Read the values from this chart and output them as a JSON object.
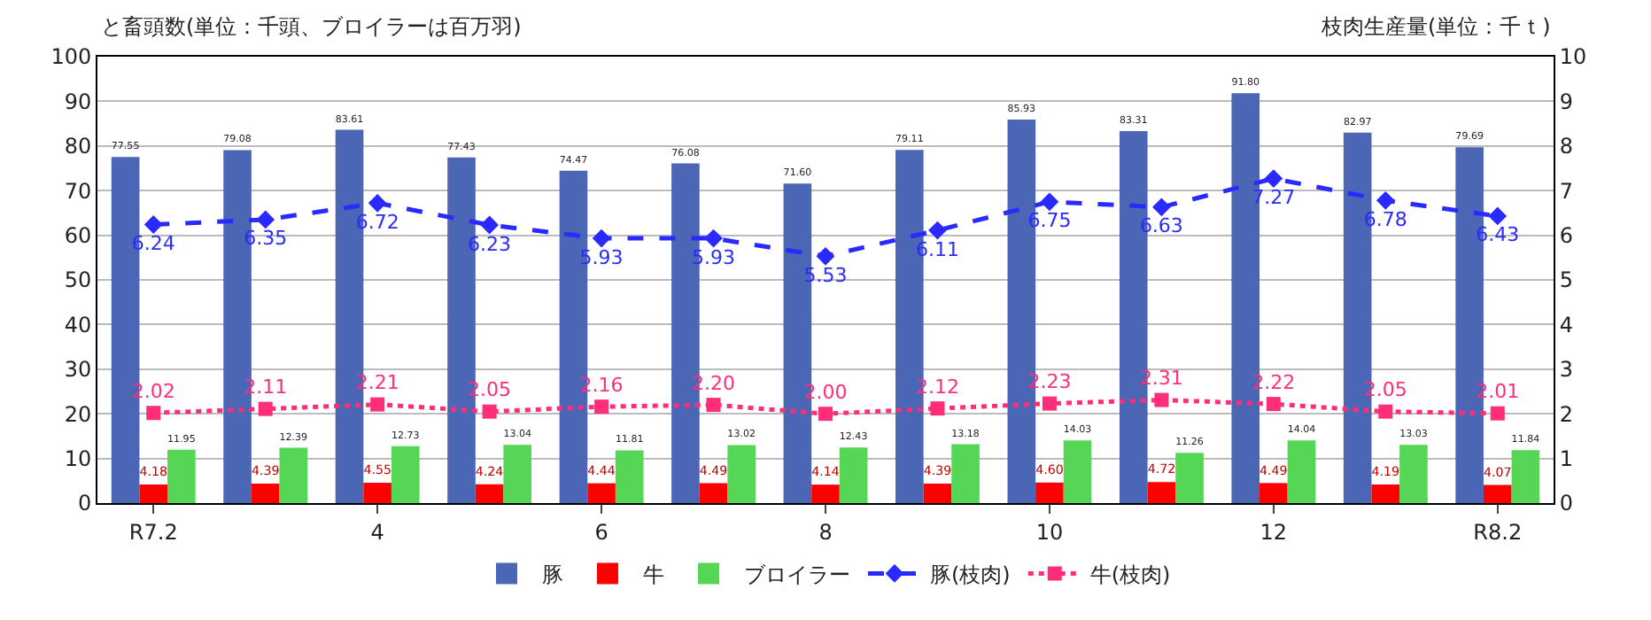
{
  "chart_data": {
    "type": "bar",
    "ylabel": "と畜頭数(単位：千頭、ブロイラーは百万羽)",
    "y2label": "枝肉生産量(単位：千ｔ)",
    "categories": [
      "R7.2",
      null,
      "4",
      null,
      "6",
      null,
      "8",
      null,
      "10",
      null,
      "12",
      null,
      "R8.2"
    ],
    "series": [
      {
        "name": "豚",
        "color": "#4a66b4",
        "values": [
          77.55,
          79.08,
          83.61,
          77.43,
          74.47,
          76.08,
          71.6,
          79.11,
          85.93,
          83.31,
          91.8,
          82.97,
          79.69
        ],
        "value_labels": [
          "77.55",
          "79.08",
          "83.61",
          "77.43",
          "74.47",
          "76.08",
          "71.60",
          "79.11",
          "85.93",
          "83.31",
          "91.80",
          "82.97",
          "79.69"
        ]
      },
      {
        "name": "牛",
        "color": "#ff0000",
        "values": [
          4.18,
          4.39,
          4.55,
          4.24,
          4.44,
          4.49,
          4.14,
          4.39,
          4.6,
          4.72,
          4.49,
          4.19,
          4.07
        ],
        "value_labels": [
          "4.18",
          "4.39",
          "4.55",
          "4.24",
          "4.44",
          "4.49",
          "4.14",
          "4.39",
          "4.60",
          "4.72",
          "4.49",
          "4.19",
          "4.07"
        ]
      },
      {
        "name": "ブロイラー",
        "color": "#55d655",
        "values": [
          11.95,
          12.39,
          12.73,
          13.04,
          11.81,
          13.02,
          12.43,
          13.18,
          14.03,
          11.26,
          14.04,
          13.03,
          11.84
        ],
        "value_labels": [
          "11.95",
          "12.39",
          "12.73",
          "13.04",
          "11.81",
          "13.02",
          "12.43",
          "13.18",
          "14.03",
          "11.26",
          "14.04",
          "13.03",
          "11.84"
        ]
      },
      {
        "name": "豚(枝肉)",
        "type": "line",
        "axis": "y2",
        "color": "#2a2aff",
        "marker": "diamond",
        "line_style": "dashed",
        "values": [
          6.24,
          6.35,
          6.72,
          6.23,
          5.93,
          5.93,
          5.53,
          6.11,
          6.75,
          6.63,
          7.27,
          6.78,
          6.43
        ],
        "value_labels": [
          "6.24",
          "6.35",
          "6.72",
          "6.23",
          "5.93",
          "5.93",
          "5.53",
          "6.11",
          "6.75",
          "6.63",
          "7.27",
          "6.78",
          "6.43"
        ]
      },
      {
        "name": "牛(枝肉)",
        "type": "line",
        "axis": "y2",
        "color": "#ff2d7a",
        "marker": "square",
        "line_style": "dotted",
        "values": [
          2.02,
          2.11,
          2.21,
          2.05,
          2.16,
          2.2,
          2.0,
          2.12,
          2.23,
          2.31,
          2.22,
          2.05,
          2.01
        ],
        "value_labels": [
          "2.02",
          "2.11",
          "2.21",
          "2.05",
          "2.16",
          "2.20",
          "2.00",
          "2.12",
          "2.23",
          "2.31",
          "2.22",
          "2.05",
          "2.01"
        ]
      }
    ],
    "ylim": [
      0,
      100
    ],
    "yticks": [
      0,
      10,
      20,
      30,
      40,
      50,
      60,
      70,
      80,
      90,
      100
    ],
    "y2lim": [
      0,
      10
    ],
    "y2ticks": [
      0,
      1,
      2,
      3,
      4,
      5,
      6,
      7,
      8,
      9,
      10
    ],
    "grid": "y",
    "legend": "bottom"
  }
}
